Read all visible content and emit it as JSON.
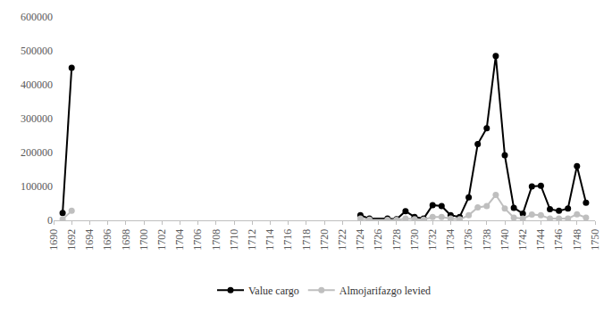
{
  "chart_data": {
    "type": "line",
    "x": [
      1691,
      1692,
      1693,
      1724,
      1725,
      1727,
      1728,
      1729,
      1730,
      1731,
      1732,
      1733,
      1734,
      1735,
      1736,
      1737,
      1738,
      1739,
      1740,
      1741,
      1742,
      1743,
      1744,
      1745,
      1746,
      1747,
      1748,
      1749
    ],
    "series": [
      {
        "name": "Value cargo",
        "color": "#000000",
        "marker": "circle",
        "values": [
          22000,
          450000,
          null,
          15000,
          5000,
          5000,
          3000,
          27000,
          10000,
          5000,
          45000,
          42000,
          15000,
          10000,
          68000,
          225000,
          272000,
          485000,
          192000,
          37000,
          20000,
          100000,
          102000,
          33000,
          28000,
          35000,
          160000,
          52000
        ]
      },
      {
        "name": "Almojarifazgo levied",
        "color": "#bfbfbf",
        "marker": "circle",
        "values": [
          3000,
          28000,
          null,
          5000,
          2000,
          1000,
          1000,
          5000,
          3000,
          2000,
          10000,
          10000,
          5000,
          3000,
          15000,
          38000,
          42000,
          75000,
          35000,
          8000,
          5000,
          17000,
          15000,
          5000,
          5000,
          5000,
          18000,
          8000
        ]
      }
    ],
    "xlim": [
      1690,
      1750
    ],
    "xticks": [
      1690,
      1692,
      1694,
      1696,
      1698,
      1700,
      1702,
      1704,
      1706,
      1708,
      1710,
      1712,
      1714,
      1716,
      1718,
      1720,
      1722,
      1724,
      1726,
      1728,
      1730,
      1732,
      1734,
      1736,
      1738,
      1740,
      1742,
      1744,
      1746,
      1748,
      1750
    ],
    "ylim": [
      0,
      600000
    ],
    "yticks": [
      0,
      100000,
      200000,
      300000,
      400000,
      500000,
      600000
    ],
    "grid": false,
    "legend": "bottom"
  }
}
